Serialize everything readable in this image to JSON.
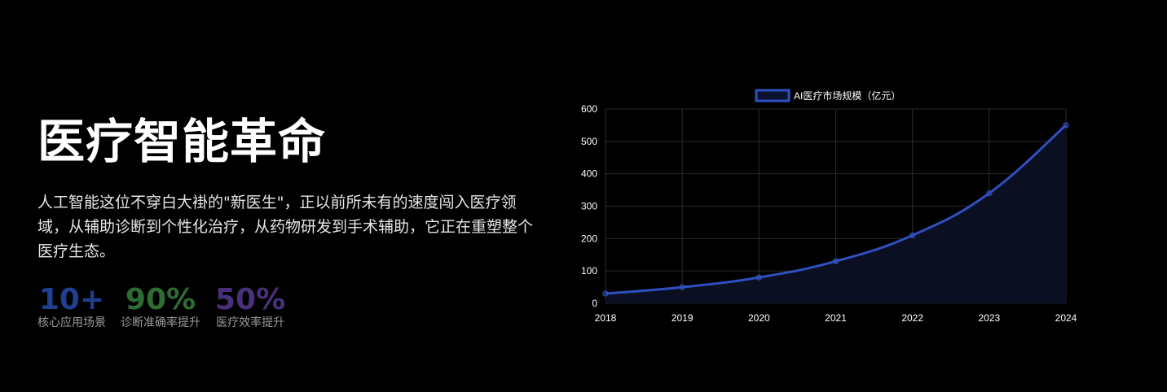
{
  "hero": {
    "title": "医疗智能革命",
    "description": "人工智能这位不穿白大褂的\"新医生\"，正以前所未有的速度闯入医疗领域，从辅助诊断到个性化治疗，从药物研发到手术辅助，它正在重塑整个医疗生态。"
  },
  "stats": [
    {
      "value": "10+",
      "label": "核心应用场景",
      "color": "#1f3f8f"
    },
    {
      "value": "90%",
      "label": "诊断准确率提升",
      "color": "#2e6b35"
    },
    {
      "value": "50%",
      "label": "医疗效率提升",
      "color": "#4a2f7a"
    }
  ],
  "colors": {
    "background": "#000000",
    "series_line": "#3050c0",
    "series_fill": "#0a0f22",
    "grid": "#2a2a2a"
  },
  "chart_data": {
    "type": "line",
    "x": [
      "2018",
      "2019",
      "2020",
      "2021",
      "2022",
      "2023",
      "2024"
    ],
    "series": [
      {
        "name": "AI医疗市场规模（亿元）",
        "values": [
          30,
          50,
          80,
          130,
          210,
          340,
          550
        ]
      }
    ],
    "ylim": [
      0,
      600
    ],
    "yticks": [
      "0",
      "100",
      "200",
      "300",
      "400",
      "500",
      "600"
    ],
    "grid": true,
    "legend": "top",
    "fill": true,
    "smooth": true
  }
}
